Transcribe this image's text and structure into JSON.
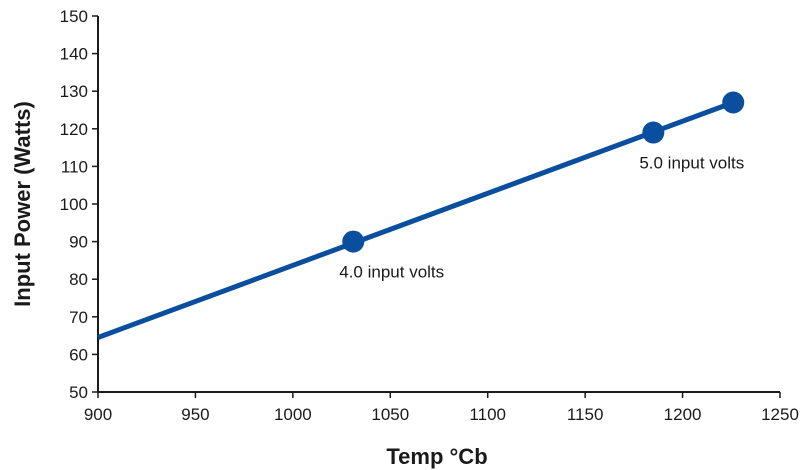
{
  "chart_data": {
    "type": "line",
    "title": "",
    "xlabel": "Temp °Cb",
    "ylabel": "Input Power (Watts)",
    "xlim": [
      900,
      1250
    ],
    "ylim": [
      50,
      150
    ],
    "x_ticks": [
      "900",
      "950",
      "1000",
      "1050",
      "1100",
      "1150",
      "1200",
      "1250"
    ],
    "y_ticks": [
      "50",
      "60",
      "70",
      "80",
      "90",
      "100",
      "110",
      "120",
      "130",
      "140",
      "150"
    ],
    "grid": false,
    "series": [
      {
        "color": "#0a4f9e",
        "x": [
          900,
          1226
        ],
        "y": [
          64.5,
          127
        ]
      }
    ],
    "markers": [
      {
        "x": 1031,
        "y": 90,
        "label": "4.0 input volts"
      },
      {
        "x": 1185,
        "y": 119,
        "label": "5.0 input volts"
      },
      {
        "x": 1226,
        "y": 127,
        "label": ""
      }
    ]
  }
}
